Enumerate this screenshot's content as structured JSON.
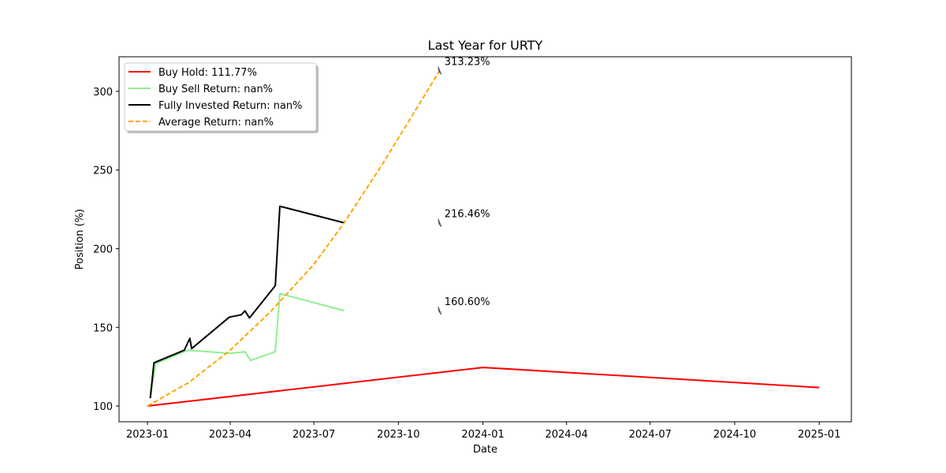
{
  "chart_data": {
    "type": "line",
    "title": "Last Year for URTY",
    "xlabel": "Date",
    "ylabel": "Position (%)",
    "xlim": [
      "2022-12-01",
      "2025-02-05"
    ],
    "ylim": [
      90,
      322
    ],
    "x_ticks": [
      "2023-01",
      "2023-04",
      "2023-07",
      "2023-10",
      "2024-01",
      "2024-04",
      "2024-07",
      "2024-10",
      "2025-01"
    ],
    "y_ticks": [
      100,
      150,
      200,
      250,
      300
    ],
    "grid": false,
    "legend_placement": "top-left",
    "series": [
      {
        "name": "Buy Hold: 111.77%",
        "color": "#ff0000",
        "style": "solid",
        "points": [
          {
            "x": "2023-01-01",
            "y": 100
          },
          {
            "x": "2024-01-01",
            "y": 124.5
          },
          {
            "x": "2025-01-01",
            "y": 111.77
          }
        ]
      },
      {
        "name": "Buy Sell Return: nan%",
        "color": "#90ee90",
        "style": "solid",
        "points": [
          {
            "x": "2023-01-04",
            "y": 105
          },
          {
            "x": "2023-01-10",
            "y": 127
          },
          {
            "x": "2023-02-14",
            "y": 135.5
          },
          {
            "x": "2023-04-01",
            "y": 133.5
          },
          {
            "x": "2023-04-17",
            "y": 134.5
          },
          {
            "x": "2023-04-23",
            "y": 129
          },
          {
            "x": "2023-05-20",
            "y": 134.5
          },
          {
            "x": "2023-05-25",
            "y": 171.5
          },
          {
            "x": "2023-08-03",
            "y": 160.6
          }
        ]
      },
      {
        "name": "Fully Invested Return: nan%",
        "color": "#000000",
        "style": "solid",
        "points": [
          {
            "x": "2023-01-04",
            "y": 105
          },
          {
            "x": "2023-01-08",
            "y": 127.5
          },
          {
            "x": "2023-02-10",
            "y": 135.5
          },
          {
            "x": "2023-02-16",
            "y": 143
          },
          {
            "x": "2023-02-18",
            "y": 136.5
          },
          {
            "x": "2023-03-31",
            "y": 156.5
          },
          {
            "x": "2023-04-13",
            "y": 158
          },
          {
            "x": "2023-04-17",
            "y": 160.5
          },
          {
            "x": "2023-04-22",
            "y": 156
          },
          {
            "x": "2023-05-20",
            "y": 176.5
          },
          {
            "x": "2023-05-25",
            "y": 227
          },
          {
            "x": "2023-08-03",
            "y": 216.46
          }
        ]
      },
      {
        "name": "Average Return: nan%",
        "color": "#ffa500",
        "style": "dashed",
        "points": [
          {
            "x": "2023-01-01",
            "y": 100
          },
          {
            "x": "2023-02-15",
            "y": 115
          },
          {
            "x": "2023-03-31",
            "y": 135
          },
          {
            "x": "2023-05-15",
            "y": 160
          },
          {
            "x": "2023-07-01",
            "y": 190
          },
          {
            "x": "2023-08-03",
            "y": 216.46
          },
          {
            "x": "2023-09-15",
            "y": 255
          },
          {
            "x": "2023-11-15",
            "y": 313.23
          }
        ]
      }
    ],
    "annotations": [
      {
        "text": "313.23%",
        "x": "2023-11-15",
        "y": 313.23
      },
      {
        "text": "216.46%",
        "x": "2023-11-15",
        "y": 216.46
      },
      {
        "text": "160.60%",
        "x": "2023-11-15",
        "y": 160.6
      }
    ]
  }
}
